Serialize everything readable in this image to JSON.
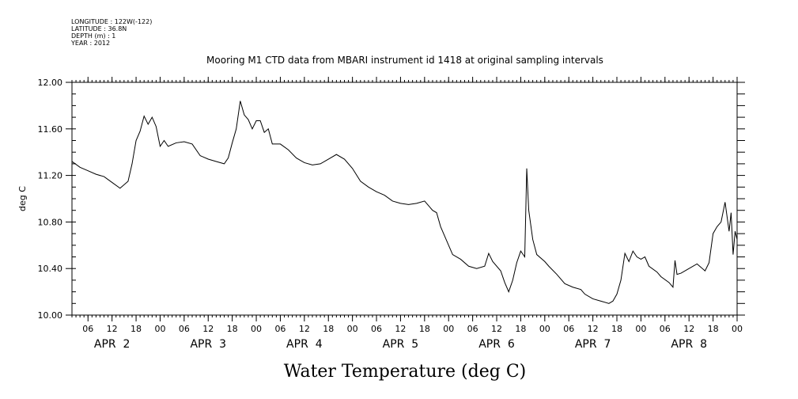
{
  "header": {
    "meta": [
      "LONGITUDE : 122W(-122)",
      "LATITUDE : 36.8N",
      "DEPTH (m) : 1",
      "YEAR : 2012"
    ],
    "title": "Mooring M1 CTD data from MBARI instrument id 1418 at original sampling intervals"
  },
  "chart_data": {
    "type": "line",
    "title": "Mooring M1 CTD data from MBARI instrument id 1418 at original sampling intervals",
    "xlabel": "Water Temperature (deg C)",
    "ylabel": "deg C",
    "ylim": [
      10.0,
      12.0
    ],
    "xlim": [
      "2012-04-01T02:00",
      "2012-04-08T00:00"
    ],
    "y_ticks": [
      "10.00",
      "10.40",
      "10.80",
      "11.20",
      "11.60",
      "12.00"
    ],
    "x_hour_ticks": [
      {
        "t": "2012-04-01T06:00",
        "label": "06"
      },
      {
        "t": "2012-04-01T12:00",
        "label": "12"
      },
      {
        "t": "2012-04-01T18:00",
        "label": "18"
      },
      {
        "t": "2012-04-02T00:00",
        "label": "00"
      },
      {
        "t": "2012-04-02T06:00",
        "label": "06"
      },
      {
        "t": "2012-04-02T12:00",
        "label": "12"
      },
      {
        "t": "2012-04-02T18:00",
        "label": "18"
      },
      {
        "t": "2012-04-03T00:00",
        "label": "00"
      },
      {
        "t": "2012-04-03T06:00",
        "label": "06"
      },
      {
        "t": "2012-04-03T12:00",
        "label": "12"
      },
      {
        "t": "2012-04-03T18:00",
        "label": "18"
      },
      {
        "t": "2012-04-04T00:00",
        "label": "00"
      },
      {
        "t": "2012-04-04T06:00",
        "label": "06"
      },
      {
        "t": "2012-04-04T12:00",
        "label": "12"
      },
      {
        "t": "2012-04-04T18:00",
        "label": "18"
      },
      {
        "t": "2012-04-05T00:00",
        "label": "00"
      },
      {
        "t": "2012-04-05T06:00",
        "label": "06"
      },
      {
        "t": "2012-04-05T12:00",
        "label": "12"
      },
      {
        "t": "2012-04-05T18:00",
        "label": "18"
      },
      {
        "t": "2012-04-06T00:00",
        "label": "00"
      },
      {
        "t": "2012-04-06T06:00",
        "label": "06"
      },
      {
        "t": "2012-04-06T12:00",
        "label": "12"
      },
      {
        "t": "2012-04-06T18:00",
        "label": "18"
      },
      {
        "t": "2012-04-07T00:00",
        "label": "00"
      },
      {
        "t": "2012-04-07T06:00",
        "label": "06"
      },
      {
        "t": "2012-04-07T12:00",
        "label": "12"
      },
      {
        "t": "2012-04-07T18:00",
        "label": "18"
      },
      {
        "t": "2012-04-08T00:00",
        "label": "00"
      }
    ],
    "x_day_labels": [
      {
        "t": "2012-04-01T12:00",
        "label": "APR  2"
      },
      {
        "t": "2012-04-02T12:00",
        "label": "APR  3"
      },
      {
        "t": "2012-04-03T12:00",
        "label": "APR  4"
      },
      {
        "t": "2012-04-04T12:00",
        "label": "APR  5"
      },
      {
        "t": "2012-04-05T12:00",
        "label": "APR  6"
      },
      {
        "t": "2012-04-06T12:00",
        "label": "APR  7"
      },
      {
        "t": "2012-04-07T12:00",
        "label": "APR  8"
      }
    ],
    "series": [
      {
        "color": "#000000",
        "points": [
          [
            "2012-04-01T02:00",
            11.32
          ],
          [
            "2012-04-01T04:00",
            11.27
          ],
          [
            "2012-04-01T06:00",
            11.24
          ],
          [
            "2012-04-01T08:00",
            11.21
          ],
          [
            "2012-04-01T10:00",
            11.19
          ],
          [
            "2012-04-01T12:00",
            11.14
          ],
          [
            "2012-04-01T14:00",
            11.09
          ],
          [
            "2012-04-01T16:00",
            11.15
          ],
          [
            "2012-04-01T17:00",
            11.3
          ],
          [
            "2012-04-01T18:00",
            11.5
          ],
          [
            "2012-04-01T19:00",
            11.58
          ],
          [
            "2012-04-01T20:00",
            11.71
          ],
          [
            "2012-04-01T21:00",
            11.64
          ],
          [
            "2012-04-01T22:00",
            11.7
          ],
          [
            "2012-04-01T23:00",
            11.62
          ],
          [
            "2012-04-02T00:00",
            11.45
          ],
          [
            "2012-04-02T01:00",
            11.5
          ],
          [
            "2012-04-02T02:00",
            11.45
          ],
          [
            "2012-04-02T04:00",
            11.48
          ],
          [
            "2012-04-02T06:00",
            11.49
          ],
          [
            "2012-04-02T08:00",
            11.47
          ],
          [
            "2012-04-02T10:00",
            11.37
          ],
          [
            "2012-04-02T12:00",
            11.34
          ],
          [
            "2012-04-02T14:00",
            11.32
          ],
          [
            "2012-04-02T16:00",
            11.3
          ],
          [
            "2012-04-02T17:00",
            11.35
          ],
          [
            "2012-04-02T18:00",
            11.48
          ],
          [
            "2012-04-02T19:00",
            11.6
          ],
          [
            "2012-04-02T20:00",
            11.84
          ],
          [
            "2012-04-02T21:00",
            11.72
          ],
          [
            "2012-04-02T22:00",
            11.68
          ],
          [
            "2012-04-02T23:00",
            11.6
          ],
          [
            "2012-04-03T00:00",
            11.67
          ],
          [
            "2012-04-03T01:00",
            11.67
          ],
          [
            "2012-04-03T02:00",
            11.57
          ],
          [
            "2012-04-03T03:00",
            11.6
          ],
          [
            "2012-04-03T04:00",
            11.47
          ],
          [
            "2012-04-03T06:00",
            11.47
          ],
          [
            "2012-04-03T08:00",
            11.42
          ],
          [
            "2012-04-03T10:00",
            11.35
          ],
          [
            "2012-04-03T12:00",
            11.31
          ],
          [
            "2012-04-03T14:00",
            11.29
          ],
          [
            "2012-04-03T16:00",
            11.3
          ],
          [
            "2012-04-03T18:00",
            11.34
          ],
          [
            "2012-04-03T20:00",
            11.38
          ],
          [
            "2012-04-03T22:00",
            11.34
          ],
          [
            "2012-04-04T00:00",
            11.26
          ],
          [
            "2012-04-04T02:00",
            11.15
          ],
          [
            "2012-04-04T04:00",
            11.1
          ],
          [
            "2012-04-04T06:00",
            11.06
          ],
          [
            "2012-04-04T08:00",
            11.03
          ],
          [
            "2012-04-04T10:00",
            10.98
          ],
          [
            "2012-04-04T12:00",
            10.96
          ],
          [
            "2012-04-04T14:00",
            10.95
          ],
          [
            "2012-04-04T16:00",
            10.96
          ],
          [
            "2012-04-04T18:00",
            10.98
          ],
          [
            "2012-04-04T19:00",
            10.94
          ],
          [
            "2012-04-04T20:00",
            10.9
          ],
          [
            "2012-04-04T21:00",
            10.88
          ],
          [
            "2012-04-04T22:00",
            10.76
          ],
          [
            "2012-04-05T00:00",
            10.6
          ],
          [
            "2012-04-05T01:00",
            10.52
          ],
          [
            "2012-04-05T03:00",
            10.48
          ],
          [
            "2012-04-05T05:00",
            10.42
          ],
          [
            "2012-04-05T07:00",
            10.4
          ],
          [
            "2012-04-05T09:00",
            10.42
          ],
          [
            "2012-04-05T10:00",
            10.53
          ],
          [
            "2012-04-05T11:00",
            10.46
          ],
          [
            "2012-04-05T13:00",
            10.38
          ],
          [
            "2012-04-05T14:00",
            10.28
          ],
          [
            "2012-04-05T15:00",
            10.2
          ],
          [
            "2012-04-05T16:00",
            10.3
          ],
          [
            "2012-04-05T17:00",
            10.45
          ],
          [
            "2012-04-05T18:00",
            10.55
          ],
          [
            "2012-04-05T19:00",
            10.5
          ],
          [
            "2012-04-05T19:30",
            11.26
          ],
          [
            "2012-04-05T20:00",
            10.9
          ],
          [
            "2012-04-05T21:00",
            10.65
          ],
          [
            "2012-04-05T22:00",
            10.52
          ],
          [
            "2012-04-06T00:00",
            10.46
          ],
          [
            "2012-04-06T01:00",
            10.42
          ],
          [
            "2012-04-06T03:00",
            10.35
          ],
          [
            "2012-04-06T05:00",
            10.27
          ],
          [
            "2012-04-06T07:00",
            10.24
          ],
          [
            "2012-04-06T09:00",
            10.22
          ],
          [
            "2012-04-06T10:00",
            10.18
          ],
          [
            "2012-04-06T12:00",
            10.14
          ],
          [
            "2012-04-06T14:00",
            10.12
          ],
          [
            "2012-04-06T16:00",
            10.1
          ],
          [
            "2012-04-06T17:00",
            10.12
          ],
          [
            "2012-04-06T18:00",
            10.18
          ],
          [
            "2012-04-06T19:00",
            10.3
          ],
          [
            "2012-04-06T20:00",
            10.53
          ],
          [
            "2012-04-06T21:00",
            10.46
          ],
          [
            "2012-04-06T22:00",
            10.55
          ],
          [
            "2012-04-06T23:00",
            10.5
          ],
          [
            "2012-04-07T00:00",
            10.48
          ],
          [
            "2012-04-07T01:00",
            10.5
          ],
          [
            "2012-04-07T02:00",
            10.42
          ],
          [
            "2012-04-07T04:00",
            10.37
          ],
          [
            "2012-04-07T05:00",
            10.33
          ],
          [
            "2012-04-07T07:00",
            10.28
          ],
          [
            "2012-04-07T08:00",
            10.24
          ],
          [
            "2012-04-07T08:30",
            10.47
          ],
          [
            "2012-04-07T09:00",
            10.35
          ],
          [
            "2012-04-07T10:00",
            10.36
          ],
          [
            "2012-04-07T12:00",
            10.4
          ],
          [
            "2012-04-07T14:00",
            10.44
          ],
          [
            "2012-04-07T16:00",
            10.38
          ],
          [
            "2012-04-07T17:00",
            10.45
          ],
          [
            "2012-04-07T18:00",
            10.7
          ],
          [
            "2012-04-07T19:00",
            10.76
          ],
          [
            "2012-04-07T20:00",
            10.8
          ],
          [
            "2012-04-07T21:00",
            10.97
          ],
          [
            "2012-04-07T22:00",
            10.72
          ],
          [
            "2012-04-07T22:30",
            10.88
          ],
          [
            "2012-04-07T23:00",
            10.52
          ],
          [
            "2012-04-07T23:30",
            10.72
          ],
          [
            "2012-04-08T00:00",
            10.65
          ]
        ]
      }
    ]
  }
}
